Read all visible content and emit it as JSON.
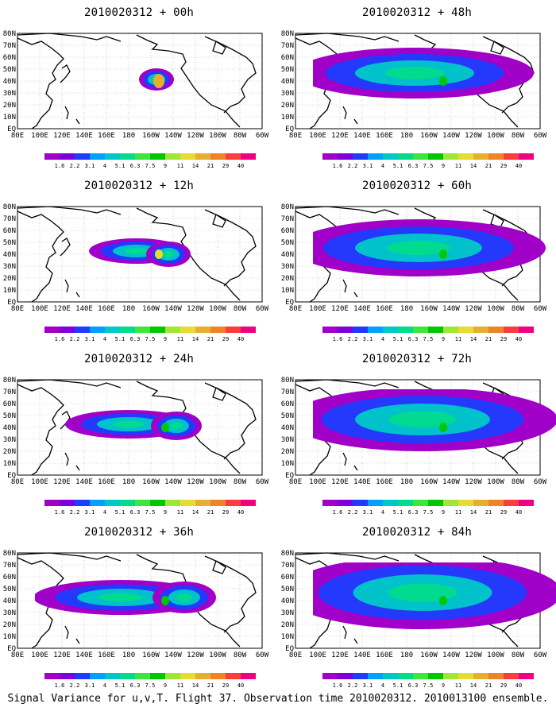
{
  "caption": "Signal Variance for u,v,T. Flight 37. Observation time 2010020312. 2010013100 ensemble.",
  "x_labels": [
    "80E",
    "100E",
    "120E",
    "140E",
    "160E",
    "180",
    "160W",
    "140W",
    "120W",
    "100W",
    "80W",
    "60W"
  ],
  "y_labels": [
    "80N",
    "70N",
    "60N",
    "50N",
    "40N",
    "30N",
    "20N",
    "10N",
    "EQ"
  ],
  "legend": {
    "labels": [
      "1.6",
      "2.2",
      "3.1",
      "4",
      "5.1",
      "6.3",
      "7.5",
      "9",
      "11",
      "14",
      "21",
      "29",
      "40"
    ],
    "colors": [
      "#a000c8",
      "#7d00dc",
      "#1e3cff",
      "#00a0ff",
      "#00c8c8",
      "#00dc8c",
      "#3ce63c",
      "#00c800",
      "#a0e632",
      "#e6dc32",
      "#e6af2d",
      "#f08228",
      "#fa3c3c",
      "#f00082"
    ]
  },
  "panels": [
    {
      "title": "2010020312 + 00h",
      "intensity": 0
    },
    {
      "title": "2010020312 + 48h",
      "intensity": 4
    },
    {
      "title": "2010020312 + 12h",
      "intensity": 1
    },
    {
      "title": "2010020312 + 60h",
      "intensity": 5
    },
    {
      "title": "2010020312 + 24h",
      "intensity": 2
    },
    {
      "title": "2010020312 + 72h",
      "intensity": 6
    },
    {
      "title": "2010020312 + 36h",
      "intensity": 3
    },
    {
      "title": "2010020312 + 84h",
      "intensity": 7
    }
  ]
}
